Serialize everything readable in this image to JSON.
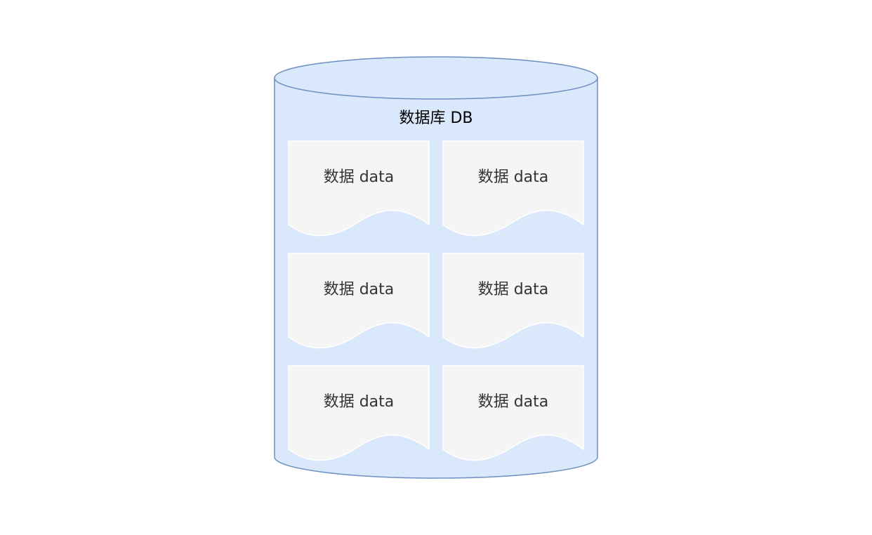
{
  "diagram": {
    "database": {
      "label": "数据库 DB",
      "fill": "#dae8fc",
      "stroke": "#6c8ebf"
    },
    "documents": [
      {
        "label": "数据 data"
      },
      {
        "label": "数据 data"
      },
      {
        "label": "数据 data"
      },
      {
        "label": "数据 data"
      },
      {
        "label": "数据 data"
      },
      {
        "label": "数据 data"
      }
    ],
    "document_style": {
      "fill": "#f5f5f5",
      "stroke": "#ffffff"
    }
  }
}
